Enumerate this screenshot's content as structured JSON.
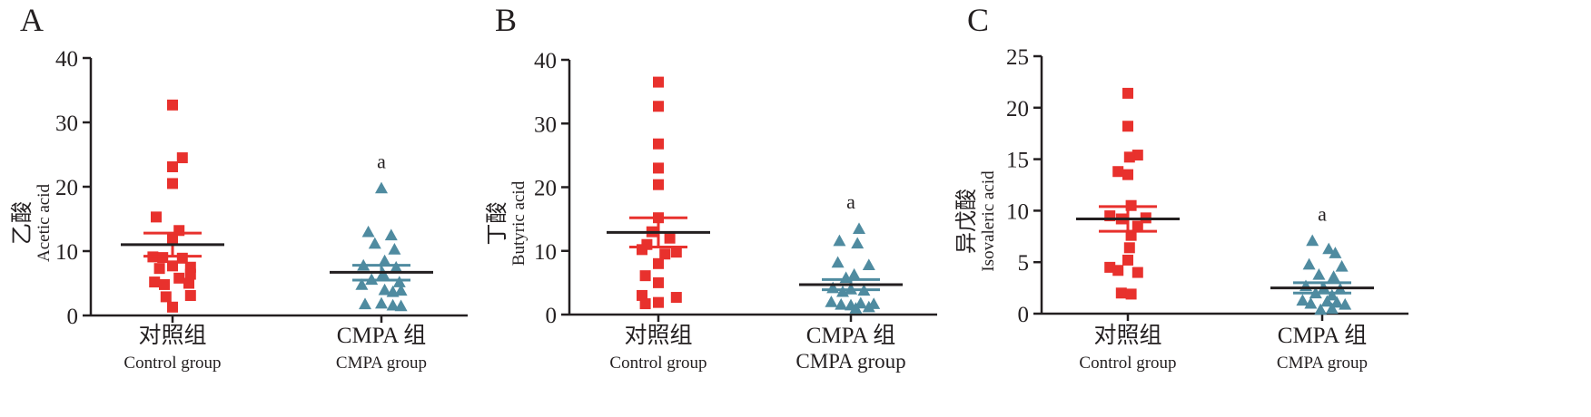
{
  "colors": {
    "control": "#e8312d",
    "cmpa": "#4f8ba0",
    "axis": "#231f20",
    "mean_line": "#231f20"
  },
  "chart_data": [
    {
      "type": "scatter",
      "panel_letter": "A",
      "ylabel_cn": "乙酸",
      "ylabel_en": "Acetic acid",
      "ylim": [
        0,
        40
      ],
      "yticks": [
        0,
        10,
        20,
        30,
        40
      ],
      "categories": [
        {
          "cn": "对照组",
          "en": "Control group"
        },
        {
          "cn": "CMPA 组",
          "en": "CMPA group"
        }
      ],
      "series": [
        {
          "marker": "square",
          "values": [
            32.7,
            24.5,
            23.1,
            20.5,
            15.3,
            13.2,
            11.8,
            9.1,
            9.0,
            8.9,
            7.7,
            7.5,
            7.3,
            6.4,
            5.8,
            5.2,
            5.0,
            4.8,
            3.1,
            2.9,
            1.3
          ],
          "jitter": [
            0.0,
            0.3,
            0.0,
            0.0,
            -0.5,
            0.2,
            0.0,
            -0.6,
            -0.3,
            0.3,
            0.0,
            0.55,
            -0.4,
            0.55,
            0.2,
            -0.55,
            0.5,
            -0.25,
            0.55,
            -0.2,
            0.0
          ],
          "mean": 11.0,
          "sem_low": 9.2,
          "sem_high": 12.8
        },
        {
          "marker": "triangle",
          "values": [
            19.8,
            13.0,
            12.5,
            11.2,
            10.3,
            8.5,
            7.8,
            7.5,
            6.5,
            5.6,
            5.2,
            4.8,
            4.0,
            3.7,
            3.9,
            1.8,
            1.9,
            1.6,
            1.5
          ],
          "jitter": [
            0.0,
            -0.4,
            0.3,
            -0.2,
            0.4,
            0.1,
            -0.55,
            0.45,
            0.05,
            -0.3,
            0.55,
            -0.6,
            0.1,
            0.35,
            0.6,
            -0.5,
            0.0,
            0.35,
            0.6
          ],
          "mean": 6.7,
          "sem_low": 5.5,
          "sem_high": 7.8,
          "annotation": "a"
        }
      ]
    },
    {
      "type": "scatter",
      "panel_letter": "B",
      "ylabel_cn": "丁酸",
      "ylabel_en": "Butyric acid",
      "ylim": [
        0,
        40
      ],
      "yticks": [
        0,
        10,
        20,
        30,
        40
      ],
      "categories": [
        {
          "cn": "对照组",
          "en": "Control group"
        },
        {
          "cn": "CMPA 组",
          "en": "CMPA group"
        }
      ],
      "series": [
        {
          "marker": "square",
          "values": [
            36.5,
            32.7,
            26.8,
            23.0,
            20.4,
            15.2,
            13.0,
            12.0,
            11.0,
            10.2,
            9.8,
            9.5,
            8.0,
            6.1,
            5.0,
            3.0,
            2.7,
            1.9,
            1.7
          ],
          "jitter": [
            0.0,
            0.0,
            0.0,
            0.0,
            0.0,
            0.0,
            -0.2,
            0.35,
            -0.35,
            -0.5,
            0.55,
            0.2,
            0.0,
            -0.4,
            0.0,
            -0.5,
            0.55,
            0.0,
            -0.4
          ],
          "mean": 12.9,
          "sem_low": 10.6,
          "sem_high": 15.2
        },
        {
          "marker": "triangle",
          "values": [
            13.5,
            11.6,
            11.2,
            8.2,
            7.8,
            6.3,
            5.8,
            4.2,
            4.0,
            3.8,
            3.6,
            2.0,
            1.6,
            1.5,
            1.8,
            1.2,
            1.0,
            1.7
          ],
          "jitter": [
            0.25,
            -0.35,
            0.2,
            -0.4,
            0.55,
            0.1,
            -0.15,
            -0.55,
            0.0,
            0.4,
            -0.25,
            -0.6,
            -0.3,
            0.0,
            0.3,
            0.55,
            0.15,
            0.7
          ],
          "mean": 4.7,
          "sem_low": 3.9,
          "sem_high": 5.5,
          "annotation": "a"
        }
      ]
    },
    {
      "type": "scatter",
      "panel_letter": "C",
      "ylabel_cn": "异戊酸",
      "ylabel_en": "Isovaleric acid",
      "ylim": [
        0,
        25
      ],
      "yticks": [
        0,
        5,
        10,
        15,
        20,
        25
      ],
      "categories": [
        {
          "cn": "对照组",
          "en": "Control group"
        },
        {
          "cn": "CMPA 组",
          "en": "CMPA group"
        }
      ],
      "series": [
        {
          "marker": "square",
          "values": [
            21.4,
            18.2,
            15.4,
            15.2,
            13.8,
            13.5,
            10.5,
            9.5,
            9.3,
            9.2,
            8.5,
            7.6,
            6.4,
            5.2,
            4.5,
            4.2,
            4.0,
            2.0,
            1.9
          ],
          "jitter": [
            0.0,
            0.0,
            0.3,
            0.05,
            -0.3,
            0.0,
            0.1,
            -0.55,
            0.55,
            -0.2,
            0.3,
            0.1,
            0.05,
            0.0,
            -0.55,
            -0.3,
            0.3,
            -0.2,
            0.1
          ],
          "mean": 9.2,
          "sem_low": 8.0,
          "sem_high": 10.4
        },
        {
          "marker": "triangle",
          "values": [
            7.1,
            6.3,
            5.9,
            4.8,
            4.6,
            3.8,
            3.6,
            2.7,
            2.5,
            2.4,
            2.0,
            1.8,
            1.3,
            1.2,
            1.1,
            1.0,
            0.9,
            0.4,
            0.5
          ],
          "jitter": [
            -0.3,
            0.2,
            0.4,
            -0.4,
            0.6,
            -0.1,
            0.35,
            -0.5,
            0.05,
            0.55,
            -0.2,
            0.3,
            -0.6,
            0.15,
            0.45,
            -0.35,
            0.7,
            -0.05,
            0.3
          ],
          "mean": 2.5,
          "sem_low": 2.0,
          "sem_high": 3.0,
          "annotation": "a"
        }
      ]
    }
  ]
}
